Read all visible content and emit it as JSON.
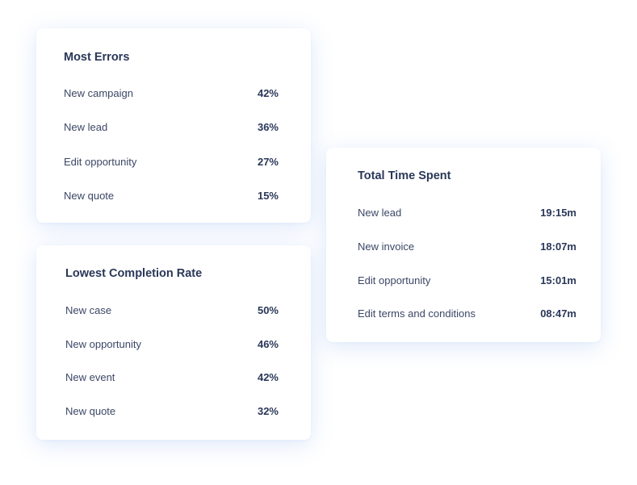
{
  "cards": [
    {
      "title": "Most Errors",
      "rows": [
        {
          "label": "New campaign",
          "value": "42%"
        },
        {
          "label": "New lead",
          "value": "36%"
        },
        {
          "label": "Edit opportunity",
          "value": "27%"
        },
        {
          "label": "New quote",
          "value": "15%"
        }
      ]
    },
    {
      "title": "Lowest Completion Rate",
      "rows": [
        {
          "label": "New case",
          "value": "50%"
        },
        {
          "label": "New opportunity",
          "value": "46%"
        },
        {
          "label": "New event",
          "value": "42%"
        },
        {
          "label": "New quote",
          "value": "32%"
        }
      ]
    },
    {
      "title": "Total Time Spent",
      "rows": [
        {
          "label": "New lead",
          "value": "19:15m"
        },
        {
          "label": "New invoice",
          "value": "18:07m"
        },
        {
          "label": "Edit opportunity",
          "value": "15:01m"
        },
        {
          "label": "Edit terms and conditions",
          "value": "08:47m"
        }
      ]
    }
  ],
  "colors": {
    "title": "#2a3758",
    "label": "#3c4766",
    "card_shadow": "#4682e6"
  }
}
